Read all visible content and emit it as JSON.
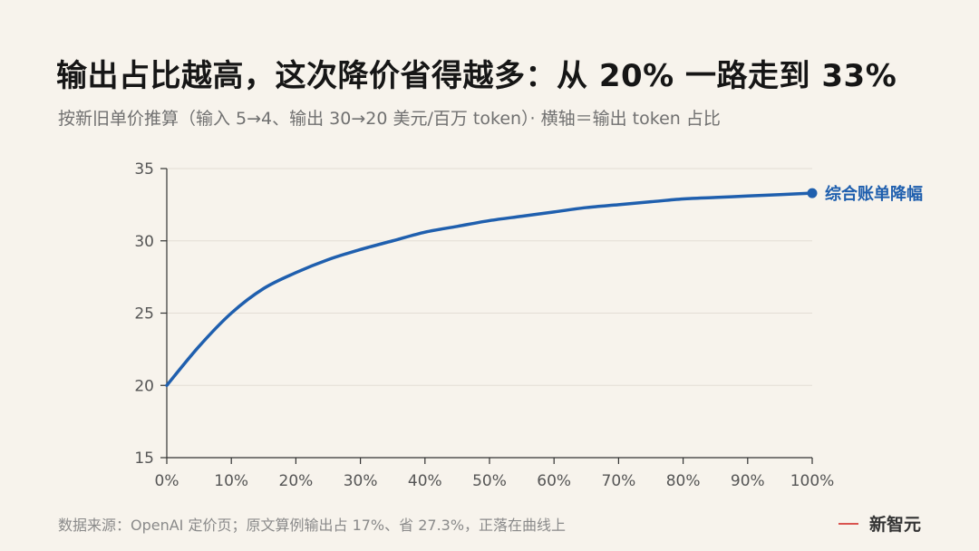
{
  "title": "输出占比越高，这次降价省得越多：从 20% 一路走到 33%",
  "subtitle": "按新旧单价推算（输入 5→4、输出 30→20 美元/百万 token）· 横轴＝输出 token 占比",
  "source": "数据来源：OpenAI 定价页；原文算例输出占 17%、省 27.3%，正落在曲线上",
  "brand": "新智元",
  "colors": {
    "background": "#f7f3ec",
    "line": "#1f5fae",
    "axis": "#333333",
    "grid": "#e3ded5",
    "brand_dash": "#d9534f"
  },
  "chart_data": {
    "type": "line",
    "x": [
      0,
      0.05,
      0.1,
      0.15,
      0.2,
      0.25,
      0.3,
      0.35,
      0.4,
      0.45,
      0.5,
      0.55,
      0.6,
      0.65,
      0.7,
      0.75,
      0.8,
      0.85,
      0.9,
      0.95,
      1.0
    ],
    "x_tick_values": [
      0,
      0.1,
      0.2,
      0.3,
      0.4,
      0.5,
      0.6,
      0.7,
      0.8,
      0.9,
      1.0
    ],
    "x_tick_labels": [
      "0%",
      "10%",
      "20%",
      "30%",
      "40%",
      "50%",
      "60%",
      "70%",
      "80%",
      "90%",
      "100%"
    ],
    "xlim": [
      0,
      1
    ],
    "ylim": [
      15,
      35
    ],
    "y_ticks": [
      15,
      20,
      25,
      30,
      35
    ],
    "series": [
      {
        "name": "综合账单降幅",
        "values": [
          20.0,
          22.7,
          25.0,
          26.7,
          27.8,
          28.7,
          29.4,
          30.0,
          30.6,
          31.0,
          31.4,
          31.7,
          32.0,
          32.3,
          32.5,
          32.7,
          32.9,
          33.0,
          33.1,
          33.2,
          33.3
        ]
      }
    ],
    "grid": "horizontal",
    "legend": "end-label"
  }
}
